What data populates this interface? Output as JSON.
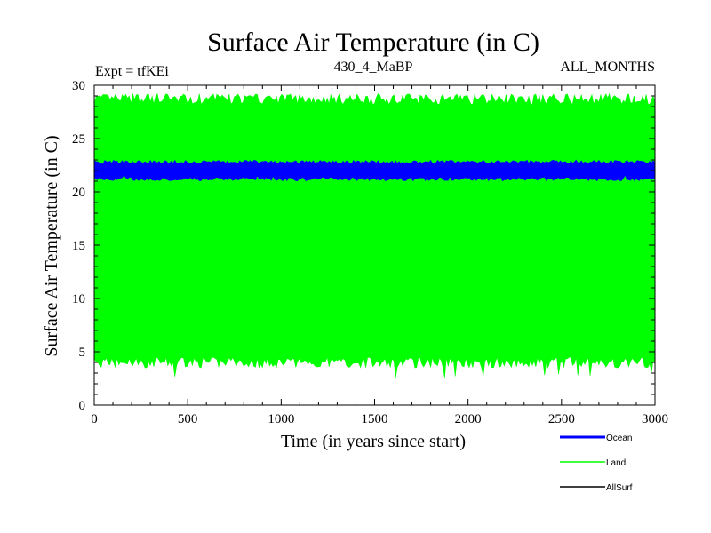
{
  "chart_data": {
    "type": "area",
    "title": "Surface Air Temperature (in C)",
    "experiment_label": "Expt = tfKEi",
    "period_label": "430_4_MaBP",
    "months_label": "ALL_MONTHS",
    "xlabel": "Time (in years since start)",
    "ylabel": "Surface Air Temperature (in C)",
    "xlim": [
      0,
      3000
    ],
    "ylim": [
      0,
      30
    ],
    "xticks": [
      0,
      500,
      1000,
      1500,
      2000,
      2500,
      3000
    ],
    "yticks": [
      0,
      5,
      10,
      15,
      20,
      25,
      30
    ],
    "grid": false,
    "legend_position": "bottom-right",
    "series": [
      {
        "name": "Ocean",
        "color": "#0000ff",
        "band": {
          "low": 21.2,
          "high": 22.8
        },
        "mean": 22.0,
        "min": 21.0,
        "max": 23.0
      },
      {
        "name": "Land",
        "color": "#00ff00",
        "band": {
          "low": 4.0,
          "high": 28.7
        },
        "mean": 16.3,
        "min": 2.5,
        "max": 29.2
      },
      {
        "name": "AllSurf",
        "color": "#000000"
      }
    ]
  }
}
